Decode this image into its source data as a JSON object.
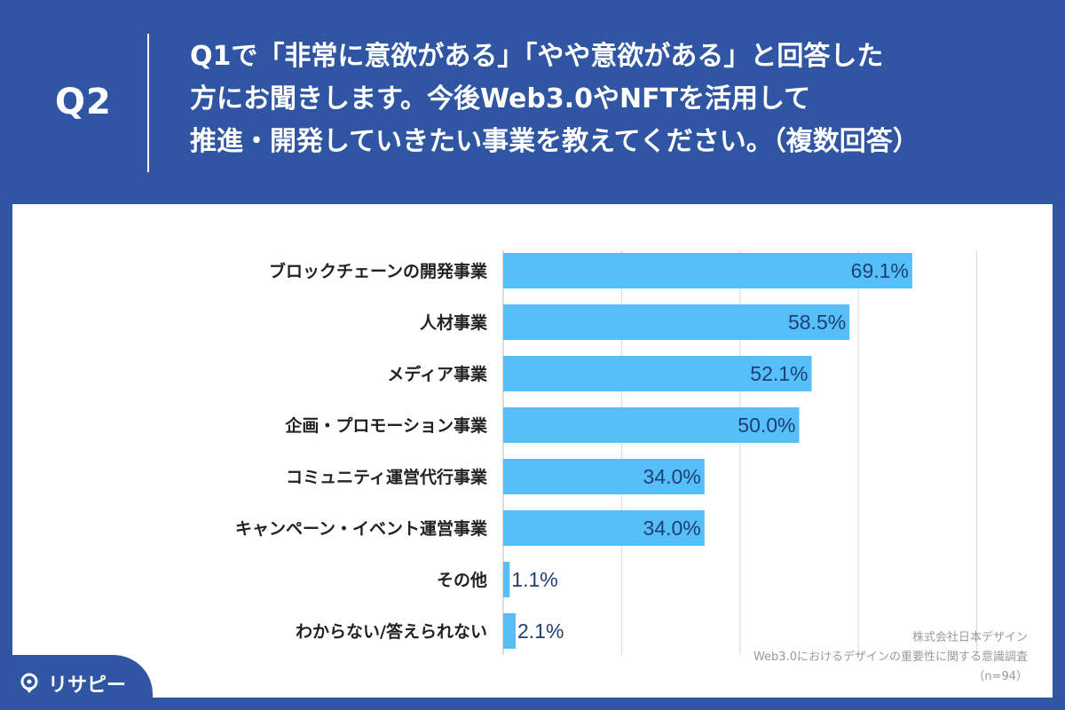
{
  "header": {
    "qnum": "Q2",
    "lines": [
      "Q1で「非常に意欲がある」「やや意欲がある」と回答した",
      "方にお聞きします。今後Web3.0やNFTを活用して",
      "推進・開発していきたい事業を教えてください。（複数回答）"
    ]
  },
  "chart_data": {
    "type": "bar",
    "orientation": "horizontal",
    "categories": [
      "ブロックチェーンの開発事業",
      "人材事業",
      "メディア事業",
      "企画・プロモーション事業",
      "コミュニティ運営代行事業",
      "キャンペーン・イベント運営事業",
      "その他",
      "わからない/答えられない"
    ],
    "values": [
      69.1,
      58.5,
      52.1,
      50.0,
      34.0,
      34.0,
      1.1,
      2.1
    ],
    "value_labels": [
      "69.1%",
      "58.5%",
      "52.1%",
      "50.0%",
      "34.0%",
      "34.0%",
      "1.1%",
      "2.1%"
    ],
    "xlim": [
      0,
      100
    ],
    "grid": true,
    "colors": {
      "bar": "#56bff9",
      "label": "#1e3f73",
      "grid": "#d8d8d8"
    }
  },
  "footer": {
    "lines": [
      "株式会社日本デザイン",
      "Web3.0におけるデザインの重要性に関する意識調査",
      "（n=94）"
    ]
  },
  "logo": {
    "text": "リサピー",
    "icon": "location-pin-icon"
  }
}
